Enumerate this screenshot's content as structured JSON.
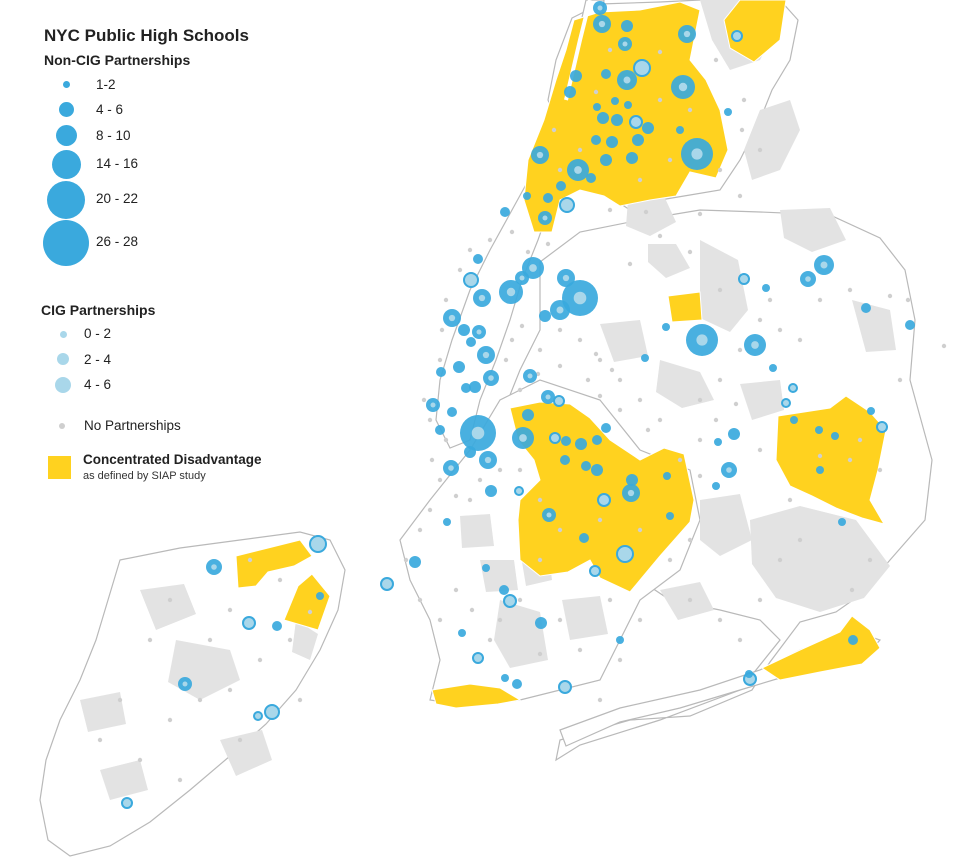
{
  "title": "NYC Public High Schools",
  "legend": {
    "non_cig": {
      "heading": "Non-CIG Partnerships",
      "items": [
        "1-2",
        "4 - 6",
        "8 - 10",
        "14 - 16",
        "20 - 22",
        "26 - 28"
      ]
    },
    "cig": {
      "heading": "CIG Partnerships",
      "items": [
        "0 - 2",
        "2 - 4",
        "4 - 6"
      ]
    },
    "none": "No Partnerships",
    "disadvantage": {
      "label": "Concentrated Disadvantage",
      "sublabel": "as defined by SIAP study"
    }
  },
  "colors": {
    "non_cig": "#3aa9dd",
    "cig": "#a9d7ea",
    "none": "#cfcfcf",
    "disadvantage": "#ffd21f",
    "land": "#ffffff",
    "park": "#e3e3e3",
    "border": "#bdbdbd"
  }
}
